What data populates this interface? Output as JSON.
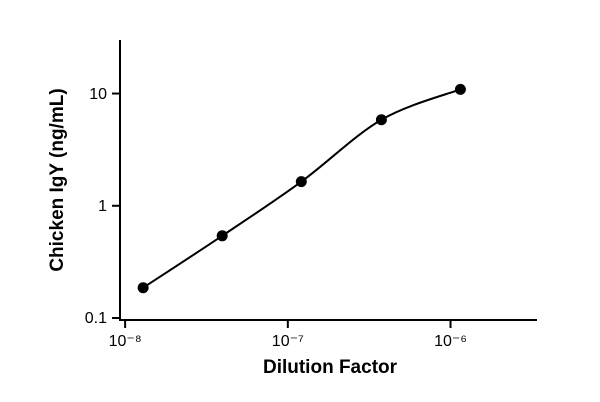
{
  "chart_data": {
    "type": "scatter",
    "xlabel": "Dilution  Factor",
    "ylabel": "Chicken IgY (ng/mL)",
    "xscale": "log",
    "yscale": "log",
    "fit_line": true,
    "series": [
      {
        "color": "#000000",
        "x": [
          1.29e-08,
          3.95e-08,
          1.21e-07,
          3.76e-07,
          1.15e-06
        ],
        "values": [
          0.186,
          0.54,
          1.64,
          5.84,
          10.9
        ]
      }
    ],
    "xlim": [
      9.3e-09,
      3.4e-06
    ],
    "xticks": [
      {
        "value": 1e-08,
        "label": "10⁻⁸"
      },
      {
        "value": 1e-07,
        "label": "10⁻⁷"
      },
      {
        "value": 1e-06,
        "label": "10⁻⁶"
      }
    ],
    "ylim": [
      0.1,
      30
    ],
    "yticks": [
      0.1,
      1,
      10
    ]
  }
}
